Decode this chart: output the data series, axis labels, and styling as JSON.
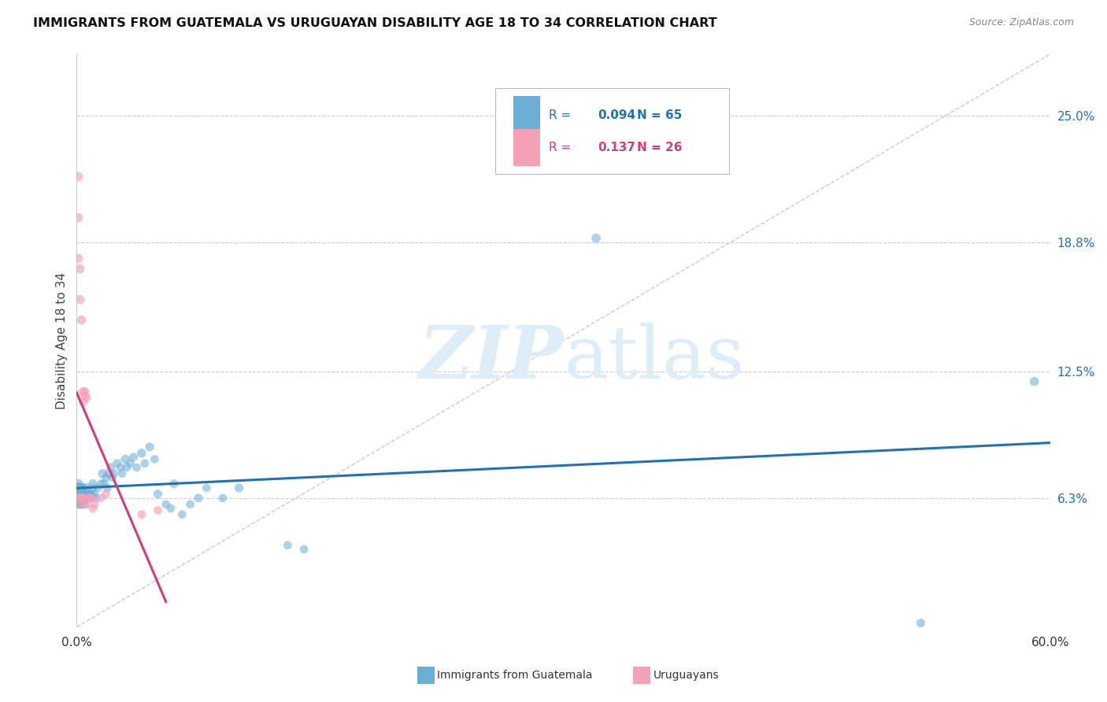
{
  "title": "IMMIGRANTS FROM GUATEMALA VS URUGUAYAN DISABILITY AGE 18 TO 34 CORRELATION CHART",
  "source": "Source: ZipAtlas.com",
  "ylabel": "Disability Age 18 to 34",
  "ytick_values": [
    0.063,
    0.125,
    0.188,
    0.25
  ],
  "ytick_labels": [
    "6.3%",
    "12.5%",
    "18.8%",
    "25.0%"
  ],
  "legend_blue_r": "0.094",
  "legend_blue_n": "65",
  "legend_pink_r": "0.137",
  "legend_pink_n": "26",
  "legend_blue_label": "Immigrants from Guatemala",
  "legend_pink_label": "Uruguayans",
  "blue_color": "#6baed6",
  "pink_color": "#f4a0b5",
  "blue_line_color": "#2171b5",
  "pink_line_color": "#d63b7a",
  "watermark_color": "#ddeef8",
  "blue_scatter_x": [
    0.001,
    0.001,
    0.001,
    0.002,
    0.002,
    0.002,
    0.002,
    0.003,
    0.003,
    0.003,
    0.003,
    0.004,
    0.004,
    0.004,
    0.005,
    0.005,
    0.005,
    0.006,
    0.006,
    0.007,
    0.007,
    0.008,
    0.008,
    0.009,
    0.01,
    0.01,
    0.011,
    0.012,
    0.013,
    0.015,
    0.016,
    0.017,
    0.018,
    0.019,
    0.02,
    0.021,
    0.022,
    0.023,
    0.025,
    0.027,
    0.028,
    0.03,
    0.031,
    0.033,
    0.035,
    0.037,
    0.04,
    0.042,
    0.045,
    0.048,
    0.05,
    0.055,
    0.058,
    0.06,
    0.065,
    0.07,
    0.075,
    0.08,
    0.09,
    0.1,
    0.13,
    0.14,
    0.32,
    0.52,
    0.59
  ],
  "blue_scatter_y": [
    0.063,
    0.068,
    0.07,
    0.065,
    0.063,
    0.068,
    0.06,
    0.065,
    0.063,
    0.068,
    0.06,
    0.065,
    0.063,
    0.068,
    0.063,
    0.065,
    0.06,
    0.068,
    0.063,
    0.065,
    0.063,
    0.065,
    0.063,
    0.065,
    0.07,
    0.068,
    0.065,
    0.063,
    0.068,
    0.07,
    0.075,
    0.07,
    0.073,
    0.068,
    0.075,
    0.078,
    0.073,
    0.075,
    0.08,
    0.078,
    0.075,
    0.082,
    0.078,
    0.08,
    0.083,
    0.078,
    0.085,
    0.08,
    0.088,
    0.082,
    0.065,
    0.06,
    0.058,
    0.07,
    0.055,
    0.06,
    0.063,
    0.068,
    0.063,
    0.068,
    0.04,
    0.038,
    0.19,
    0.002,
    0.12
  ],
  "blue_scatter_size": [
    300,
    100,
    80,
    200,
    150,
    100,
    80,
    150,
    100,
    80,
    60,
    100,
    80,
    60,
    100,
    80,
    60,
    80,
    60,
    80,
    60,
    70,
    60,
    60,
    70,
    60,
    60,
    60,
    60,
    65,
    70,
    65,
    60,
    60,
    70,
    65,
    60,
    60,
    65,
    60,
    60,
    70,
    60,
    60,
    65,
    60,
    70,
    60,
    65,
    60,
    65,
    60,
    60,
    65,
    60,
    60,
    65,
    60,
    60,
    65,
    60,
    60,
    70,
    65,
    70
  ],
  "pink_scatter_x": [
    0.001,
    0.001,
    0.001,
    0.001,
    0.002,
    0.002,
    0.002,
    0.003,
    0.003,
    0.003,
    0.004,
    0.004,
    0.004,
    0.005,
    0.005,
    0.006,
    0.006,
    0.007,
    0.008,
    0.009,
    0.01,
    0.011,
    0.015,
    0.018,
    0.04,
    0.05
  ],
  "pink_scatter_y": [
    0.22,
    0.2,
    0.18,
    0.063,
    0.175,
    0.16,
    0.063,
    0.15,
    0.063,
    0.06,
    0.115,
    0.11,
    0.063,
    0.115,
    0.113,
    0.112,
    0.06,
    0.063,
    0.063,
    0.063,
    0.058,
    0.06,
    0.063,
    0.065,
    0.055,
    0.057
  ],
  "pink_scatter_size": [
    70,
    70,
    70,
    70,
    70,
    70,
    70,
    70,
    70,
    65,
    70,
    65,
    65,
    70,
    65,
    65,
    65,
    65,
    65,
    65,
    60,
    60,
    60,
    60,
    60,
    60
  ],
  "xmin": 0.0,
  "xmax": 0.6,
  "ymin": 0.0,
  "ymax": 0.28,
  "blue_trend": [
    0.0,
    0.6,
    0.063,
    0.073
  ],
  "pink_trend": [
    0.0,
    0.04,
    0.09,
    0.125
  ]
}
